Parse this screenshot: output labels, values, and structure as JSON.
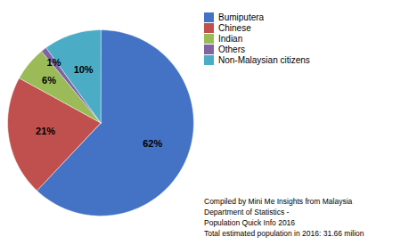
{
  "chart_data": {
    "type": "pie",
    "categories": [
      "Bumiputera",
      "Chinese",
      "Indian",
      "Others",
      "Non-Malaysian citizens"
    ],
    "values": [
      62,
      21,
      6,
      1,
      10
    ],
    "value_labels": [
      "62%",
      "21%",
      "6%",
      "1%",
      "10%"
    ],
    "colors": [
      "#4472C4",
      "#C0504D",
      "#9BBB59",
      "#8064A2",
      "#4BACC6"
    ],
    "data_labels": true,
    "legend": "upper right",
    "annotation": "Compiled by Mini Me Insights from Malaysia\nDepartment of Statistics -\nPopulation Quick Info 2016\nTotal estimated population in 2016: 31.66 milion"
  }
}
